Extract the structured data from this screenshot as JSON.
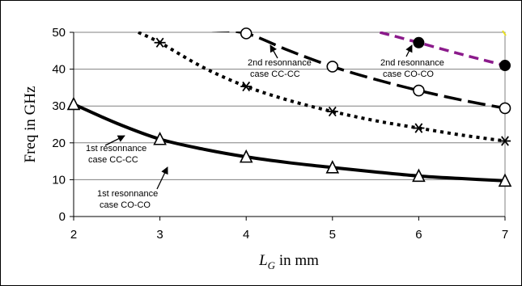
{
  "chart_data": {
    "type": "line",
    "xlabel": "L",
    "xlabel_sub": "G",
    "xlabel_unit": " in mm",
    "ylabel": "Freq in GHz",
    "xlim": [
      2,
      7
    ],
    "ylim": [
      0,
      50
    ],
    "x_ticks": [
      "2",
      "3",
      "4",
      "5",
      "6",
      "7"
    ],
    "y_ticks": [
      "0",
      "10",
      "20",
      "30",
      "40",
      "50"
    ],
    "x_tick_values": [
      2,
      3,
      4,
      5,
      6,
      7
    ],
    "y_tick_values": [
      0,
      10,
      20,
      30,
      40,
      50
    ],
    "grid": "horizontal",
    "legend": "none",
    "series": [
      {
        "id": "cc1",
        "x": [
          2,
          3,
          4,
          5,
          6,
          7
        ],
        "y": [
          30.5,
          21,
          16.2,
          13.3,
          11,
          9.7
        ],
        "marker": "triangle",
        "line": "solid",
        "color": "#000000",
        "curve": [
          [
            2,
            30.5
          ],
          [
            2.5,
            25.3
          ],
          [
            3,
            21
          ],
          [
            3.5,
            18.3
          ],
          [
            4,
            16.2
          ],
          [
            4.5,
            14.6
          ],
          [
            5,
            13.3
          ],
          [
            5.5,
            12.1
          ],
          [
            6,
            11
          ],
          [
            6.5,
            10.3
          ],
          [
            7,
            9.7
          ]
        ]
      },
      {
        "id": "co1",
        "x": [
          3,
          4,
          5,
          6,
          7
        ],
        "y": [
          47.2,
          35.3,
          28.5,
          24,
          20.5
        ],
        "marker": "asterisk",
        "line": "dotted",
        "color": "#000000",
        "curve": [
          [
            2.75,
            50
          ],
          [
            3,
            47.2
          ],
          [
            3.5,
            40.5
          ],
          [
            4,
            35.3
          ],
          [
            4.5,
            31.5
          ],
          [
            5,
            28.5
          ],
          [
            5.5,
            26
          ],
          [
            6,
            24
          ],
          [
            6.5,
            22.1
          ],
          [
            7,
            20.5
          ]
        ]
      },
      {
        "id": "cc2",
        "x": [
          4,
          5,
          6,
          7
        ],
        "y": [
          49.7,
          40.7,
          34.2,
          29.4
        ],
        "marker": "circle-open",
        "line": "long-dash",
        "color": "#000000",
        "curve": [
          [
            3.6,
            50.6
          ],
          [
            4,
            49.7
          ],
          [
            4.5,
            45
          ],
          [
            5,
            40.7
          ],
          [
            5.5,
            37.2
          ],
          [
            6,
            34.2
          ],
          [
            6.5,
            31.6
          ],
          [
            7,
            29.4
          ]
        ]
      },
      {
        "id": "co2",
        "x": [
          6,
          7
        ],
        "y": [
          47.2,
          41
        ],
        "marker": "circle-filled",
        "line": "dash",
        "color": "#8b1a8b",
        "curve": [
          [
            5.55,
            50
          ],
          [
            6,
            47.2
          ],
          [
            6.5,
            44
          ],
          [
            7,
            41
          ]
        ]
      }
    ],
    "annotations": [
      {
        "lines": [
          "1st resonnance",
          "case CO-CO"
        ]
      },
      {
        "lines": [
          "2nd resonnance",
          "case CC-CC"
        ]
      },
      {
        "lines": [
          "2nd resonnance",
          "case CO-CO"
        ]
      },
      {
        "lines": [
          "1st resonnance",
          "case CC-CC"
        ]
      }
    ]
  }
}
